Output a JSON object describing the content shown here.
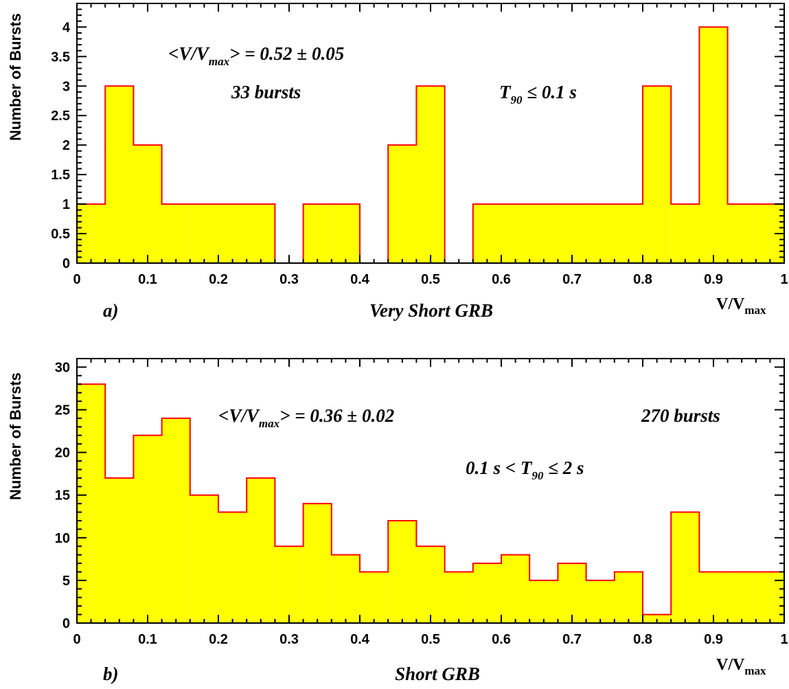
{
  "chart_data": [
    {
      "type": "bar",
      "title": "Very Short GRB",
      "panel_label": "a)",
      "xlabel": "V/V",
      "xlabel_sub": "max",
      "ylabel": "Number of Bursts",
      "xlim": [
        0,
        1
      ],
      "ylim": [
        0,
        4.4
      ],
      "bin_width": 0.04,
      "bin_edges_start": [
        0,
        0.04,
        0.08,
        0.12,
        0.16,
        0.2,
        0.24,
        0.28,
        0.32,
        0.36,
        0.4,
        0.44,
        0.48,
        0.52,
        0.56,
        0.6,
        0.64,
        0.68,
        0.72,
        0.76,
        0.8,
        0.84,
        0.88,
        0.92,
        0.96
      ],
      "values": [
        1,
        3,
        2,
        1,
        1,
        1,
        1,
        0,
        1,
        1,
        0,
        2,
        3,
        0,
        1,
        1,
        1,
        1,
        1,
        1,
        3,
        1,
        4,
        1,
        1
      ],
      "xticks": [
        "0",
        "0.1",
        "0.2",
        "0.3",
        "0.4",
        "0.5",
        "0.6",
        "0.7",
        "0.8",
        "0.9",
        "1"
      ],
      "yticks": [
        "0",
        "0.5",
        "1",
        "1.5",
        "2",
        "2.5",
        "3",
        "3.5",
        "4"
      ],
      "colors": {
        "fill": "#ffff00",
        "line": "#ff0000"
      },
      "annotations": {
        "mean_prefix": "<V/V",
        "mean_sub": "max",
        "mean_suffix": "> = 0.52 ± 0.05",
        "count": "33 bursts",
        "cut_prefix": "T",
        "cut_sub": "90",
        "cut_suffix": " ≤ 0.1 s"
      }
    },
    {
      "type": "bar",
      "title": "Short GRB",
      "panel_label": "b)",
      "xlabel": "V/V",
      "xlabel_sub": "max",
      "ylabel": "Number of Bursts",
      "xlim": [
        0,
        1
      ],
      "ylim": [
        0,
        31
      ],
      "bin_width": 0.04,
      "bin_edges_start": [
        0,
        0.04,
        0.08,
        0.12,
        0.16,
        0.2,
        0.24,
        0.28,
        0.32,
        0.36,
        0.4,
        0.44,
        0.48,
        0.52,
        0.56,
        0.6,
        0.64,
        0.68,
        0.72,
        0.76,
        0.8,
        0.84,
        0.88,
        0.92,
        0.96
      ],
      "values": [
        28,
        17,
        22,
        24,
        15,
        13,
        17,
        9,
        14,
        8,
        6,
        12,
        9,
        6,
        7,
        8,
        5,
        7,
        5,
        6,
        1,
        13,
        6,
        6,
        6
      ],
      "xticks": [
        "0",
        "0.1",
        "0.2",
        "0.3",
        "0.4",
        "0.5",
        "0.6",
        "0.7",
        "0.8",
        "0.9",
        "1"
      ],
      "yticks": [
        "0",
        "5",
        "10",
        "15",
        "20",
        "25",
        "30"
      ],
      "colors": {
        "fill": "#ffff00",
        "line": "#ff0000"
      },
      "annotations": {
        "mean_prefix": "<V/V",
        "mean_sub": "max",
        "mean_suffix": "> = 0.36 ± 0.02",
        "count": "270 bursts",
        "cut_prefix": "0.1 s < T",
        "cut_sub": "90",
        "cut_suffix": " ≤ 2 s"
      }
    }
  ]
}
